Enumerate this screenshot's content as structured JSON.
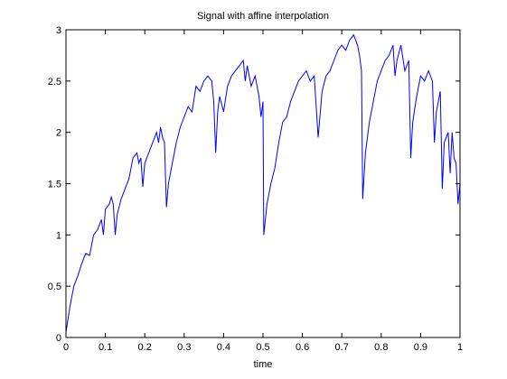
{
  "chart_data": {
    "type": "line",
    "title": "Signal with affine interpolation",
    "xlabel": "time",
    "series": [
      {
        "color": "#0000ff",
        "x": [
          0,
          0.01,
          0.02,
          0.03,
          0.04,
          0.05,
          0.06,
          0.07,
          0.08,
          0.09,
          0.095,
          0.1,
          0.11,
          0.115,
          0.12,
          0.125,
          0.13,
          0.14,
          0.15,
          0.16,
          0.17,
          0.18,
          0.185,
          0.19,
          0.195,
          0.2,
          0.21,
          0.22,
          0.23,
          0.235,
          0.24,
          0.245,
          0.25,
          0.255,
          0.26,
          0.27,
          0.28,
          0.29,
          0.3,
          0.31,
          0.32,
          0.33,
          0.34,
          0.35,
          0.36,
          0.37,
          0.375,
          0.38,
          0.385,
          0.39,
          0.4,
          0.41,
          0.42,
          0.43,
          0.44,
          0.45,
          0.455,
          0.46,
          0.47,
          0.48,
          0.49,
          0.495,
          0.5,
          0.502,
          0.51,
          0.52,
          0.53,
          0.54,
          0.55,
          0.56,
          0.57,
          0.58,
          0.59,
          0.6,
          0.61,
          0.62,
          0.63,
          0.64,
          0.65,
          0.66,
          0.67,
          0.68,
          0.69,
          0.7,
          0.71,
          0.72,
          0.73,
          0.74,
          0.745,
          0.75,
          0.753,
          0.76,
          0.77,
          0.78,
          0.79,
          0.8,
          0.81,
          0.82,
          0.83,
          0.835,
          0.84,
          0.85,
          0.86,
          0.87,
          0.875,
          0.88,
          0.89,
          0.9,
          0.91,
          0.92,
          0.93,
          0.935,
          0.94,
          0.95,
          0.955,
          0.96,
          0.97,
          0.975,
          0.98,
          0.985,
          0.99,
          0.995,
          1.0
        ],
        "values": [
          0.05,
          0.3,
          0.5,
          0.6,
          0.72,
          0.82,
          0.8,
          1.0,
          1.05,
          1.15,
          1.0,
          1.25,
          1.3,
          1.37,
          1.3,
          1.0,
          1.2,
          1.35,
          1.45,
          1.55,
          1.75,
          1.8,
          1.7,
          1.75,
          1.47,
          1.7,
          1.8,
          1.9,
          2.0,
          1.9,
          2.05,
          1.95,
          1.9,
          1.27,
          1.5,
          1.7,
          1.9,
          2.05,
          2.15,
          2.25,
          2.2,
          2.45,
          2.4,
          2.5,
          2.55,
          2.5,
          2.3,
          1.8,
          2.2,
          2.35,
          2.2,
          2.45,
          2.55,
          2.6,
          2.65,
          2.7,
          2.5,
          2.65,
          2.45,
          2.55,
          2.35,
          2.15,
          2.3,
          1.0,
          1.3,
          1.5,
          1.65,
          1.9,
          2.1,
          2.15,
          2.3,
          2.4,
          2.5,
          2.55,
          2.6,
          2.5,
          2.55,
          1.95,
          2.4,
          2.55,
          2.6,
          2.7,
          2.8,
          2.85,
          2.8,
          2.9,
          2.95,
          2.85,
          2.75,
          2.6,
          1.35,
          1.8,
          2.1,
          2.3,
          2.5,
          2.6,
          2.7,
          2.75,
          2.85,
          2.55,
          2.7,
          2.85,
          2.6,
          2.7,
          1.75,
          2.1,
          2.35,
          2.55,
          2.5,
          2.6,
          2.5,
          1.9,
          2.2,
          2.4,
          1.45,
          1.9,
          2.0,
          1.6,
          2.0,
          1.75,
          1.7,
          1.3,
          1.5
        ]
      }
    ],
    "xlim": [
      0,
      1
    ],
    "ylim": [
      0,
      3
    ],
    "xticks": [
      0,
      0.1,
      0.2,
      0.3,
      0.4,
      0.5,
      0.6,
      0.7,
      0.8,
      0.9,
      1
    ],
    "yticks": [
      0,
      0.5,
      1,
      1.5,
      2,
      2.5,
      3
    ]
  }
}
